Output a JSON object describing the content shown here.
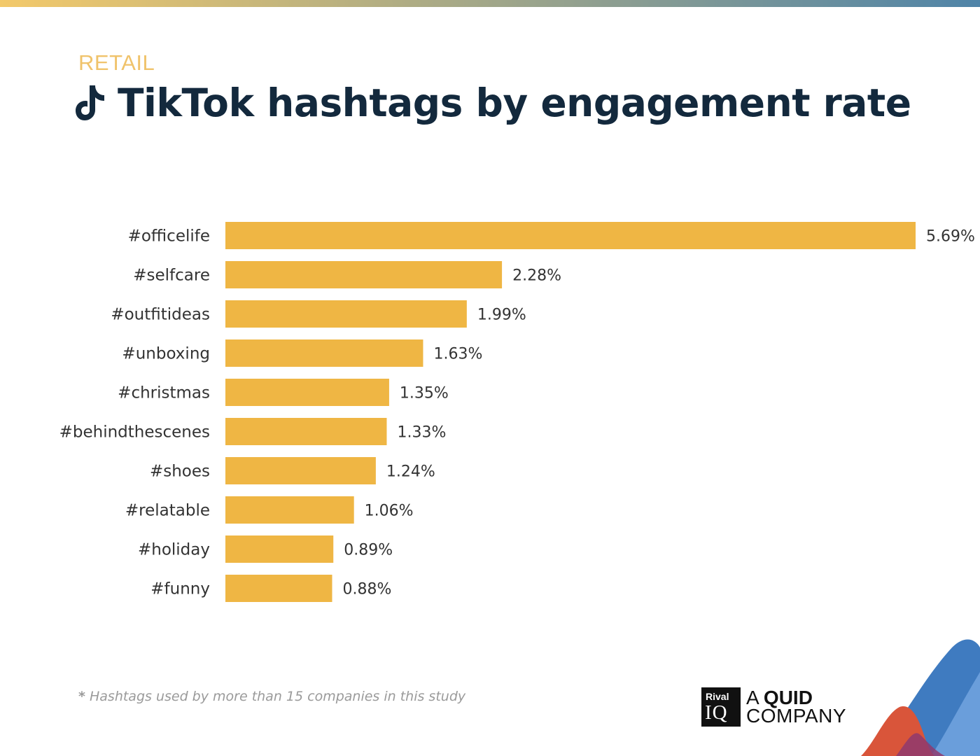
{
  "header": {
    "category": "RETAIL",
    "title": "TikTok hashtags by engagement rate"
  },
  "icons": {
    "title_icon": "tiktok-icon",
    "decoration": "wave-shapes"
  },
  "colors": {
    "category": "#F0C36B",
    "title": "#13293D",
    "bar": "#EFB644",
    "label_text": "#333333",
    "footnote": "#9A9A9A",
    "gradient_start": "#F3C96A",
    "gradient_end": "#4F84A8"
  },
  "chart_data": {
    "type": "bar",
    "orientation": "horizontal",
    "categories": [
      "#officelife",
      "#selfcare",
      "#outfitideas",
      "#unboxing",
      "#christmas",
      "#behindthescenes",
      "#shoes",
      "#relatable",
      "#holiday",
      "#funny"
    ],
    "values": [
      5.69,
      2.28,
      1.99,
      1.63,
      1.35,
      1.33,
      1.24,
      1.06,
      0.89,
      0.88
    ],
    "value_labels": [
      "5.69%",
      "2.28%",
      "1.99%",
      "1.63%",
      "1.35%",
      "1.33%",
      "1.24%",
      "1.06%",
      "0.89%",
      "0.88%"
    ],
    "title": "TikTok hashtags by engagement rate",
    "xlabel": "",
    "ylabel": "",
    "unit": "%",
    "xlim": [
      0,
      5.69
    ],
    "grid": false,
    "legend": "none"
  },
  "footnote": {
    "star": "*",
    "text": "Hashtags used by more than 15 companies in this study"
  },
  "logo": {
    "rival": "Rival",
    "iq": "IQ",
    "a": "A",
    "quid": "QUID",
    "company": "COMPANY"
  }
}
